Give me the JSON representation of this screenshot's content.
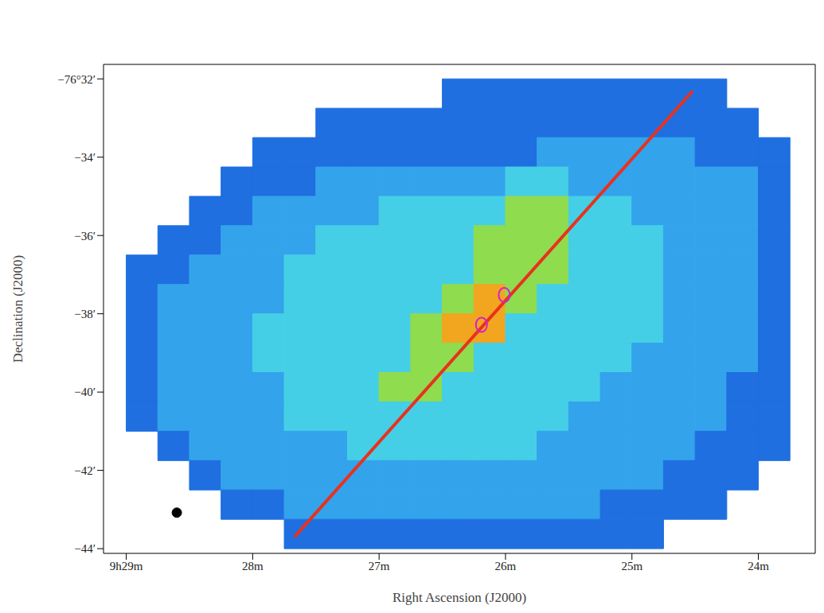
{
  "chart_data": {
    "type": "heatmap",
    "x_label": "Right Ascension (J2000)",
    "y_label": "Declination (J2000)",
    "xlim": [
      29.18,
      23.55
    ],
    "xticks": [
      {
        "value": 29,
        "label": "9h29m"
      },
      {
        "value": 28,
        "label": "28m"
      },
      {
        "value": 27,
        "label": "27m"
      },
      {
        "value": 26,
        "label": "26m"
      },
      {
        "value": 25,
        "label": "25m"
      },
      {
        "value": 24,
        "label": "24m"
      }
    ],
    "ylim": [
      -44.12,
      -31.63
    ],
    "yticks": [
      {
        "value": -32,
        "label": "−76°32′"
      },
      {
        "value": -34,
        "label": "−34′"
      },
      {
        "value": -36,
        "label": "−36′"
      },
      {
        "value": -38,
        "label": "−38′"
      },
      {
        "value": -40,
        "label": "−40′"
      },
      {
        "value": -42,
        "label": "−42′"
      },
      {
        "value": -44,
        "label": "−44′"
      }
    ],
    "heatmap": {
      "zlim": [
        0,
        5
      ],
      "x_edges": [
        29.0,
        28.75,
        28.5,
        28.25,
        28.0,
        27.75,
        27.5,
        27.25,
        27.0,
        26.75,
        26.5,
        26.25,
        26.0,
        25.75,
        25.5,
        25.25,
        25.0,
        24.75,
        24.5,
        24.25,
        24.0,
        23.75
      ],
      "y_edges": [
        -32,
        -32.75,
        -33.5,
        -34.25,
        -35,
        -35.75,
        -36.5,
        -37.25,
        -38,
        -38.75,
        -39.5,
        -40.25,
        -41,
        -41.75,
        -42.5,
        -43.25,
        -44
      ],
      "cells": [
        [
          0,
          0,
          0,
          0,
          0,
          0,
          0,
          0,
          0,
          0,
          1,
          1,
          1,
          1,
          1,
          1,
          1,
          1,
          1,
          0,
          0
        ],
        [
          0,
          0,
          0,
          0,
          0,
          0,
          1,
          1,
          1,
          1,
          1,
          1,
          1,
          1,
          1,
          1,
          1,
          1,
          1,
          1,
          0
        ],
        [
          0,
          0,
          0,
          0,
          1,
          1,
          1,
          1,
          1,
          1,
          1,
          1,
          1,
          2,
          2,
          2,
          2,
          2,
          1,
          1,
          1
        ],
        [
          0,
          0,
          0,
          1,
          1,
          1,
          2,
          2,
          2,
          2,
          2,
          2,
          3,
          3,
          2,
          2,
          2,
          2,
          2,
          2,
          1
        ],
        [
          0,
          0,
          1,
          1,
          2,
          2,
          2,
          2,
          3,
          3,
          3,
          3,
          4,
          4,
          3,
          3,
          2,
          2,
          2,
          2,
          1
        ],
        [
          0,
          1,
          1,
          2,
          2,
          2,
          3,
          3,
          3,
          3,
          3,
          4,
          4,
          4,
          3,
          3,
          3,
          2,
          2,
          2,
          1
        ],
        [
          1,
          1,
          2,
          2,
          2,
          3,
          3,
          3,
          3,
          3,
          3,
          4,
          4,
          4,
          3,
          3,
          3,
          2,
          2,
          2,
          1
        ],
        [
          1,
          2,
          2,
          2,
          2,
          3,
          3,
          3,
          3,
          3,
          4,
          5,
          4,
          3,
          3,
          3,
          3,
          2,
          2,
          2,
          1
        ],
        [
          1,
          2,
          2,
          2,
          3,
          3,
          3,
          3,
          3,
          4,
          5,
          5,
          3,
          3,
          3,
          3,
          3,
          2,
          2,
          2,
          1
        ],
        [
          1,
          2,
          2,
          2,
          3,
          3,
          3,
          3,
          3,
          4,
          4,
          3,
          3,
          3,
          3,
          3,
          2,
          2,
          2,
          2,
          1
        ],
        [
          1,
          2,
          2,
          2,
          2,
          3,
          3,
          3,
          4,
          4,
          3,
          3,
          3,
          3,
          3,
          2,
          2,
          2,
          2,
          1,
          1
        ],
        [
          1,
          2,
          2,
          2,
          2,
          3,
          3,
          3,
          3,
          3,
          3,
          3,
          3,
          3,
          2,
          2,
          2,
          2,
          2,
          1,
          1
        ],
        [
          0,
          1,
          2,
          2,
          2,
          2,
          2,
          3,
          3,
          3,
          3,
          3,
          3,
          2,
          2,
          2,
          2,
          2,
          1,
          1,
          1
        ],
        [
          0,
          0,
          1,
          2,
          2,
          2,
          2,
          2,
          2,
          2,
          2,
          2,
          2,
          2,
          2,
          2,
          2,
          1,
          1,
          1,
          0
        ],
        [
          0,
          0,
          0,
          1,
          1,
          2,
          2,
          2,
          2,
          2,
          2,
          2,
          2,
          2,
          2,
          1,
          1,
          1,
          1,
          0,
          0
        ],
        [
          0,
          0,
          0,
          0,
          0,
          1,
          1,
          1,
          1,
          1,
          1,
          1,
          1,
          1,
          1,
          1,
          1,
          0,
          0,
          0,
          0
        ]
      ]
    },
    "line": {
      "x": [
        27.67,
        24.52
      ],
      "y": [
        -43.7,
        -32.31
      ],
      "color": "#e8321e"
    },
    "peaks": {
      "x": [
        26.19,
        26.01
      ],
      "y": [
        -38.28,
        -37.52
      ],
      "color": "#d21fd2"
    },
    "beam": {
      "x": 28.6,
      "y": -43.08
    }
  }
}
